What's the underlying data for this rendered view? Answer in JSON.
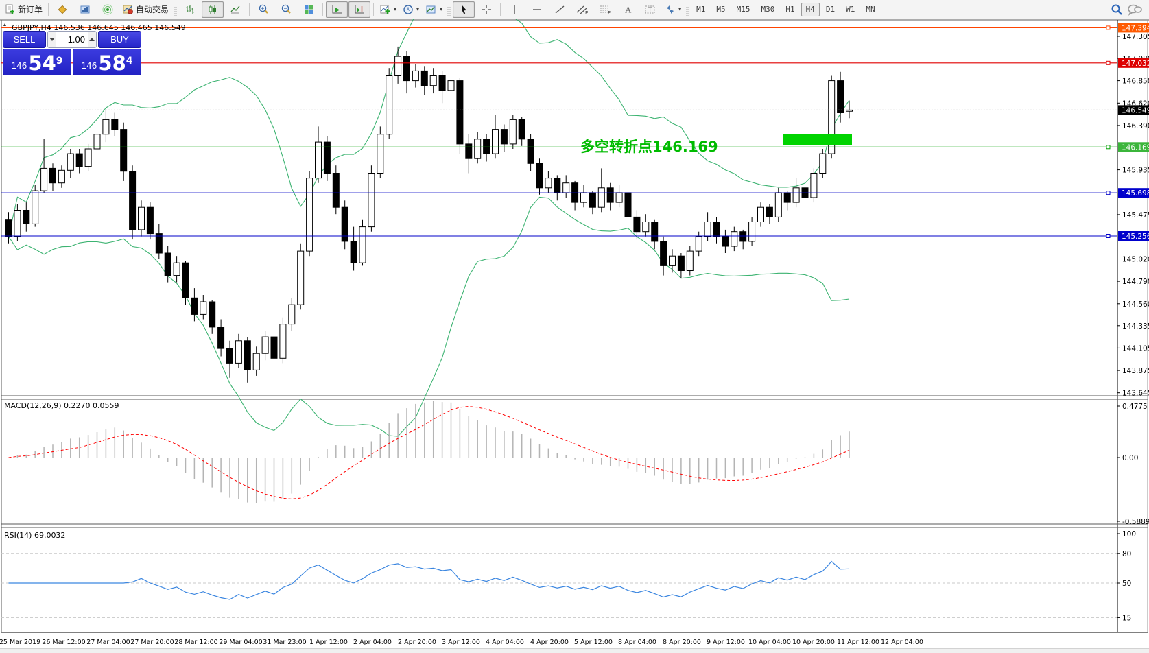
{
  "toolbar": {
    "new_order_label": "新订单",
    "auto_trading_label": "自动交易",
    "timeframes": [
      "M1",
      "M5",
      "M15",
      "M30",
      "H1",
      "H4",
      "D1",
      "W1",
      "MN"
    ],
    "active_timeframe": "H4"
  },
  "chart": {
    "title": "GBPJPY,H4 146.536 146.645 146.465 146.549",
    "symbol": "GBPJPY",
    "period": "H4"
  },
  "trade_panel": {
    "sell_label": "SELL",
    "buy_label": "BUY",
    "volume": "1.00",
    "sell_small": "146",
    "sell_big": "54",
    "sell_sup": "9",
    "buy_small": "146",
    "buy_big": "58",
    "buy_sup": "4"
  },
  "annotation": {
    "text": "多空转折点146.169",
    "color": "#00bb00"
  },
  "macd_panel": {
    "label": "MACD(12,26,9) 0.2270 0.0559",
    "axis_labels": [
      "0.4775",
      "0.00",
      "-0.5889"
    ]
  },
  "rsi_panel": {
    "label": "RSI(14) 69.0032",
    "axis_labels": [
      "100",
      "80",
      "50",
      "15"
    ],
    "levels": [
      80,
      50,
      15
    ]
  },
  "chart_data": {
    "type": "candlestick",
    "symbol": "GBPJPY",
    "timeframe": "H4",
    "title": "GBPJPY,H4 146.536 146.645 146.465 146.549",
    "y_range": [
      143.6,
      147.46
    ],
    "price_axis_ticks": [
      "147.305",
      "147.080",
      "146.850",
      "146.620",
      "146.390",
      "145.935",
      "145.475",
      "145.020",
      "144.790",
      "144.560",
      "144.335",
      "144.105",
      "143.875",
      "143.645"
    ],
    "price_badges": [
      {
        "label": "147.394",
        "price": 147.394,
        "color": "#ff5a00"
      },
      {
        "label": "147.032",
        "price": 147.032,
        "color": "#dd0000"
      },
      {
        "label": "146.549",
        "price": 146.549,
        "color": "#000000"
      },
      {
        "label": "146.169",
        "price": 146.169,
        "color": "#3bb53b"
      },
      {
        "label": "145.698",
        "price": 145.698,
        "color": "#0000cc"
      },
      {
        "label": "145.256",
        "price": 145.256,
        "color": "#0000cc"
      }
    ],
    "horizontal_lines": [
      {
        "price": 147.394,
        "color": "#ff4400",
        "style": "solid"
      },
      {
        "price": 147.032,
        "color": "#e00000",
        "style": "solid"
      },
      {
        "price": 146.169,
        "color": "#00a000",
        "style": "solid"
      },
      {
        "price": 145.698,
        "color": "#0000c8",
        "style": "solid"
      },
      {
        "price": 145.256,
        "color": "#0000c8",
        "style": "solid"
      },
      {
        "price": 146.549,
        "color": "#aaaaaa",
        "style": "dotted"
      }
    ],
    "highlight_rect": {
      "price_top": 146.305,
      "price_bottom": 146.19,
      "x_from_candle": 88,
      "x_to_candle": 96,
      "color": "#00d400"
    },
    "time_labels": [
      "25 Mar 2019",
      "26 Mar 12:00",
      "27 Mar 04:00",
      "27 Mar 20:00",
      "28 Mar 12:00",
      "29 Mar 04:00",
      "31 Mar 23:00",
      "1 Apr 12:00",
      "2 Apr 04:00",
      "2 Apr 20:00",
      "3 Apr 12:00",
      "4 Apr 04:00",
      "4 Apr 20:00",
      "5 Apr 12:00",
      "8 Apr 04:00",
      "8 Apr 20:00",
      "9 Apr 12:00",
      "10 Apr 04:00",
      "10 Apr 20:00",
      "11 Apr 12:00",
      "12 Apr 04:00"
    ],
    "indicators": {
      "bollinger": {
        "period": 20,
        "deviation": 2,
        "color": "#3cb371"
      },
      "macd": {
        "fast": 12,
        "slow": 26,
        "signal": 9,
        "current": "0.2270 0.0559",
        "hist_color": "#b4b4b4",
        "signal_color": "#ff0000",
        "axis": [
          "0.4775",
          "0.00",
          "-0.5889"
        ]
      },
      "rsi": {
        "period": 14,
        "current": "69.0032",
        "color": "#3b86e0",
        "levels": [
          80,
          50,
          15
        ]
      }
    },
    "ohlc": [
      [
        145.42,
        145.5,
        145.18,
        145.25
      ],
      [
        145.25,
        145.58,
        145.2,
        145.52
      ],
      [
        145.52,
        145.6,
        145.3,
        145.38
      ],
      [
        145.38,
        145.78,
        145.35,
        145.72
      ],
      [
        145.72,
        146.25,
        145.7,
        145.95
      ],
      [
        145.95,
        146.0,
        145.72,
        145.8
      ],
      [
        145.8,
        145.98,
        145.75,
        145.93
      ],
      [
        145.93,
        146.15,
        145.85,
        146.1
      ],
      [
        146.1,
        146.15,
        145.9,
        145.97
      ],
      [
        145.97,
        146.2,
        145.92,
        146.15
      ],
      [
        146.15,
        146.35,
        146.05,
        146.3
      ],
      [
        146.3,
        146.55,
        146.22,
        146.45
      ],
      [
        146.45,
        146.52,
        146.28,
        146.35
      ],
      [
        146.35,
        146.42,
        145.82,
        145.92
      ],
      [
        145.92,
        145.98,
        145.22,
        145.32
      ],
      [
        145.32,
        145.62,
        145.25,
        145.55
      ],
      [
        145.55,
        145.6,
        145.22,
        145.28
      ],
      [
        145.28,
        145.38,
        145.02,
        145.08
      ],
      [
        145.08,
        145.15,
        144.78,
        144.85
      ],
      [
        144.85,
        145.05,
        144.78,
        144.98
      ],
      [
        144.98,
        145.0,
        144.55,
        144.62
      ],
      [
        144.62,
        144.72,
        144.38,
        144.45
      ],
      [
        144.45,
        144.65,
        144.4,
        144.58
      ],
      [
        144.58,
        144.6,
        144.25,
        144.32
      ],
      [
        144.32,
        144.4,
        144.02,
        144.1
      ],
      [
        144.1,
        144.18,
        143.8,
        143.95
      ],
      [
        143.95,
        144.25,
        143.9,
        144.18
      ],
      [
        144.18,
        144.22,
        143.75,
        143.88
      ],
      [
        143.88,
        144.12,
        143.82,
        144.05
      ],
      [
        144.05,
        144.28,
        143.98,
        144.22
      ],
      [
        144.22,
        144.25,
        143.92,
        144.0
      ],
      [
        144.0,
        144.42,
        143.95,
        144.35
      ],
      [
        144.35,
        144.62,
        144.28,
        144.55
      ],
      [
        144.55,
        145.18,
        144.5,
        145.1
      ],
      [
        145.1,
        145.92,
        145.05,
        145.85
      ],
      [
        145.85,
        146.38,
        145.8,
        146.22
      ],
      [
        146.22,
        146.28,
        145.82,
        145.9
      ],
      [
        145.9,
        145.98,
        145.48,
        145.55
      ],
      [
        145.55,
        145.62,
        145.12,
        145.2
      ],
      [
        145.2,
        145.35,
        144.9,
        144.98
      ],
      [
        144.98,
        145.42,
        144.95,
        145.35
      ],
      [
        145.35,
        145.98,
        145.3,
        145.9
      ],
      [
        145.9,
        146.38,
        145.85,
        146.3
      ],
      [
        146.3,
        146.98,
        146.25,
        146.9
      ],
      [
        146.9,
        147.2,
        146.82,
        147.1
      ],
      [
        147.1,
        147.15,
        146.72,
        146.85
      ],
      [
        146.85,
        147.02,
        146.78,
        146.95
      ],
      [
        146.95,
        147.0,
        146.7,
        146.8
      ],
      [
        146.8,
        146.98,
        146.72,
        146.9
      ],
      [
        146.9,
        146.95,
        146.62,
        146.75
      ],
      [
        146.75,
        147.05,
        146.7,
        146.85
      ],
      [
        146.85,
        146.88,
        146.1,
        146.2
      ],
      [
        146.2,
        146.3,
        145.9,
        146.05
      ],
      [
        146.05,
        146.32,
        146.0,
        146.25
      ],
      [
        146.25,
        146.3,
        146.02,
        146.1
      ],
      [
        146.1,
        146.5,
        146.05,
        146.35
      ],
      [
        146.35,
        146.4,
        146.12,
        146.2
      ],
      [
        146.2,
        146.5,
        146.15,
        146.45
      ],
      [
        146.45,
        146.48,
        146.18,
        146.25
      ],
      [
        146.25,
        146.3,
        145.92,
        146.0
      ],
      [
        146.0,
        146.05,
        145.68,
        145.75
      ],
      [
        145.75,
        145.92,
        145.7,
        145.85
      ],
      [
        145.85,
        145.88,
        145.62,
        145.7
      ],
      [
        145.7,
        145.88,
        145.65,
        145.8
      ],
      [
        145.8,
        145.82,
        145.52,
        145.6
      ],
      [
        145.6,
        145.78,
        145.55,
        145.7
      ],
      [
        145.7,
        145.72,
        145.48,
        145.55
      ],
      [
        145.55,
        145.95,
        145.5,
        145.75
      ],
      [
        145.75,
        145.8,
        145.52,
        145.6
      ],
      [
        145.6,
        145.78,
        145.55,
        145.7
      ],
      [
        145.7,
        145.72,
        145.38,
        145.45
      ],
      [
        145.45,
        145.52,
        145.22,
        145.3
      ],
      [
        145.3,
        145.48,
        145.25,
        145.4
      ],
      [
        145.4,
        145.42,
        145.12,
        145.2
      ],
      [
        145.2,
        145.25,
        144.85,
        144.95
      ],
      [
        144.95,
        145.12,
        144.88,
        145.05
      ],
      [
        145.05,
        145.08,
        144.82,
        144.9
      ],
      [
        144.9,
        145.15,
        144.85,
        145.1
      ],
      [
        145.1,
        145.3,
        145.05,
        145.25
      ],
      [
        145.25,
        145.5,
        145.2,
        145.4
      ],
      [
        145.4,
        145.45,
        145.18,
        145.25
      ],
      [
        145.25,
        145.32,
        145.08,
        145.15
      ],
      [
        145.15,
        145.35,
        145.1,
        145.3
      ],
      [
        145.3,
        145.32,
        145.12,
        145.2
      ],
      [
        145.2,
        145.45,
        145.15,
        145.4
      ],
      [
        145.4,
        145.6,
        145.35,
        145.55
      ],
      [
        145.55,
        145.58,
        145.38,
        145.45
      ],
      [
        145.45,
        145.75,
        145.4,
        145.7
      ],
      [
        145.7,
        145.72,
        145.52,
        145.6
      ],
      [
        145.6,
        145.85,
        145.55,
        145.75
      ],
      [
        145.75,
        145.78,
        145.58,
        145.65
      ],
      [
        145.65,
        145.95,
        145.6,
        145.9
      ],
      [
        145.9,
        146.15,
        145.85,
        146.1
      ],
      [
        146.1,
        146.9,
        146.05,
        146.85
      ],
      [
        146.85,
        146.94,
        146.42,
        146.52
      ],
      [
        146.536,
        146.645,
        146.465,
        146.549
      ]
    ]
  }
}
